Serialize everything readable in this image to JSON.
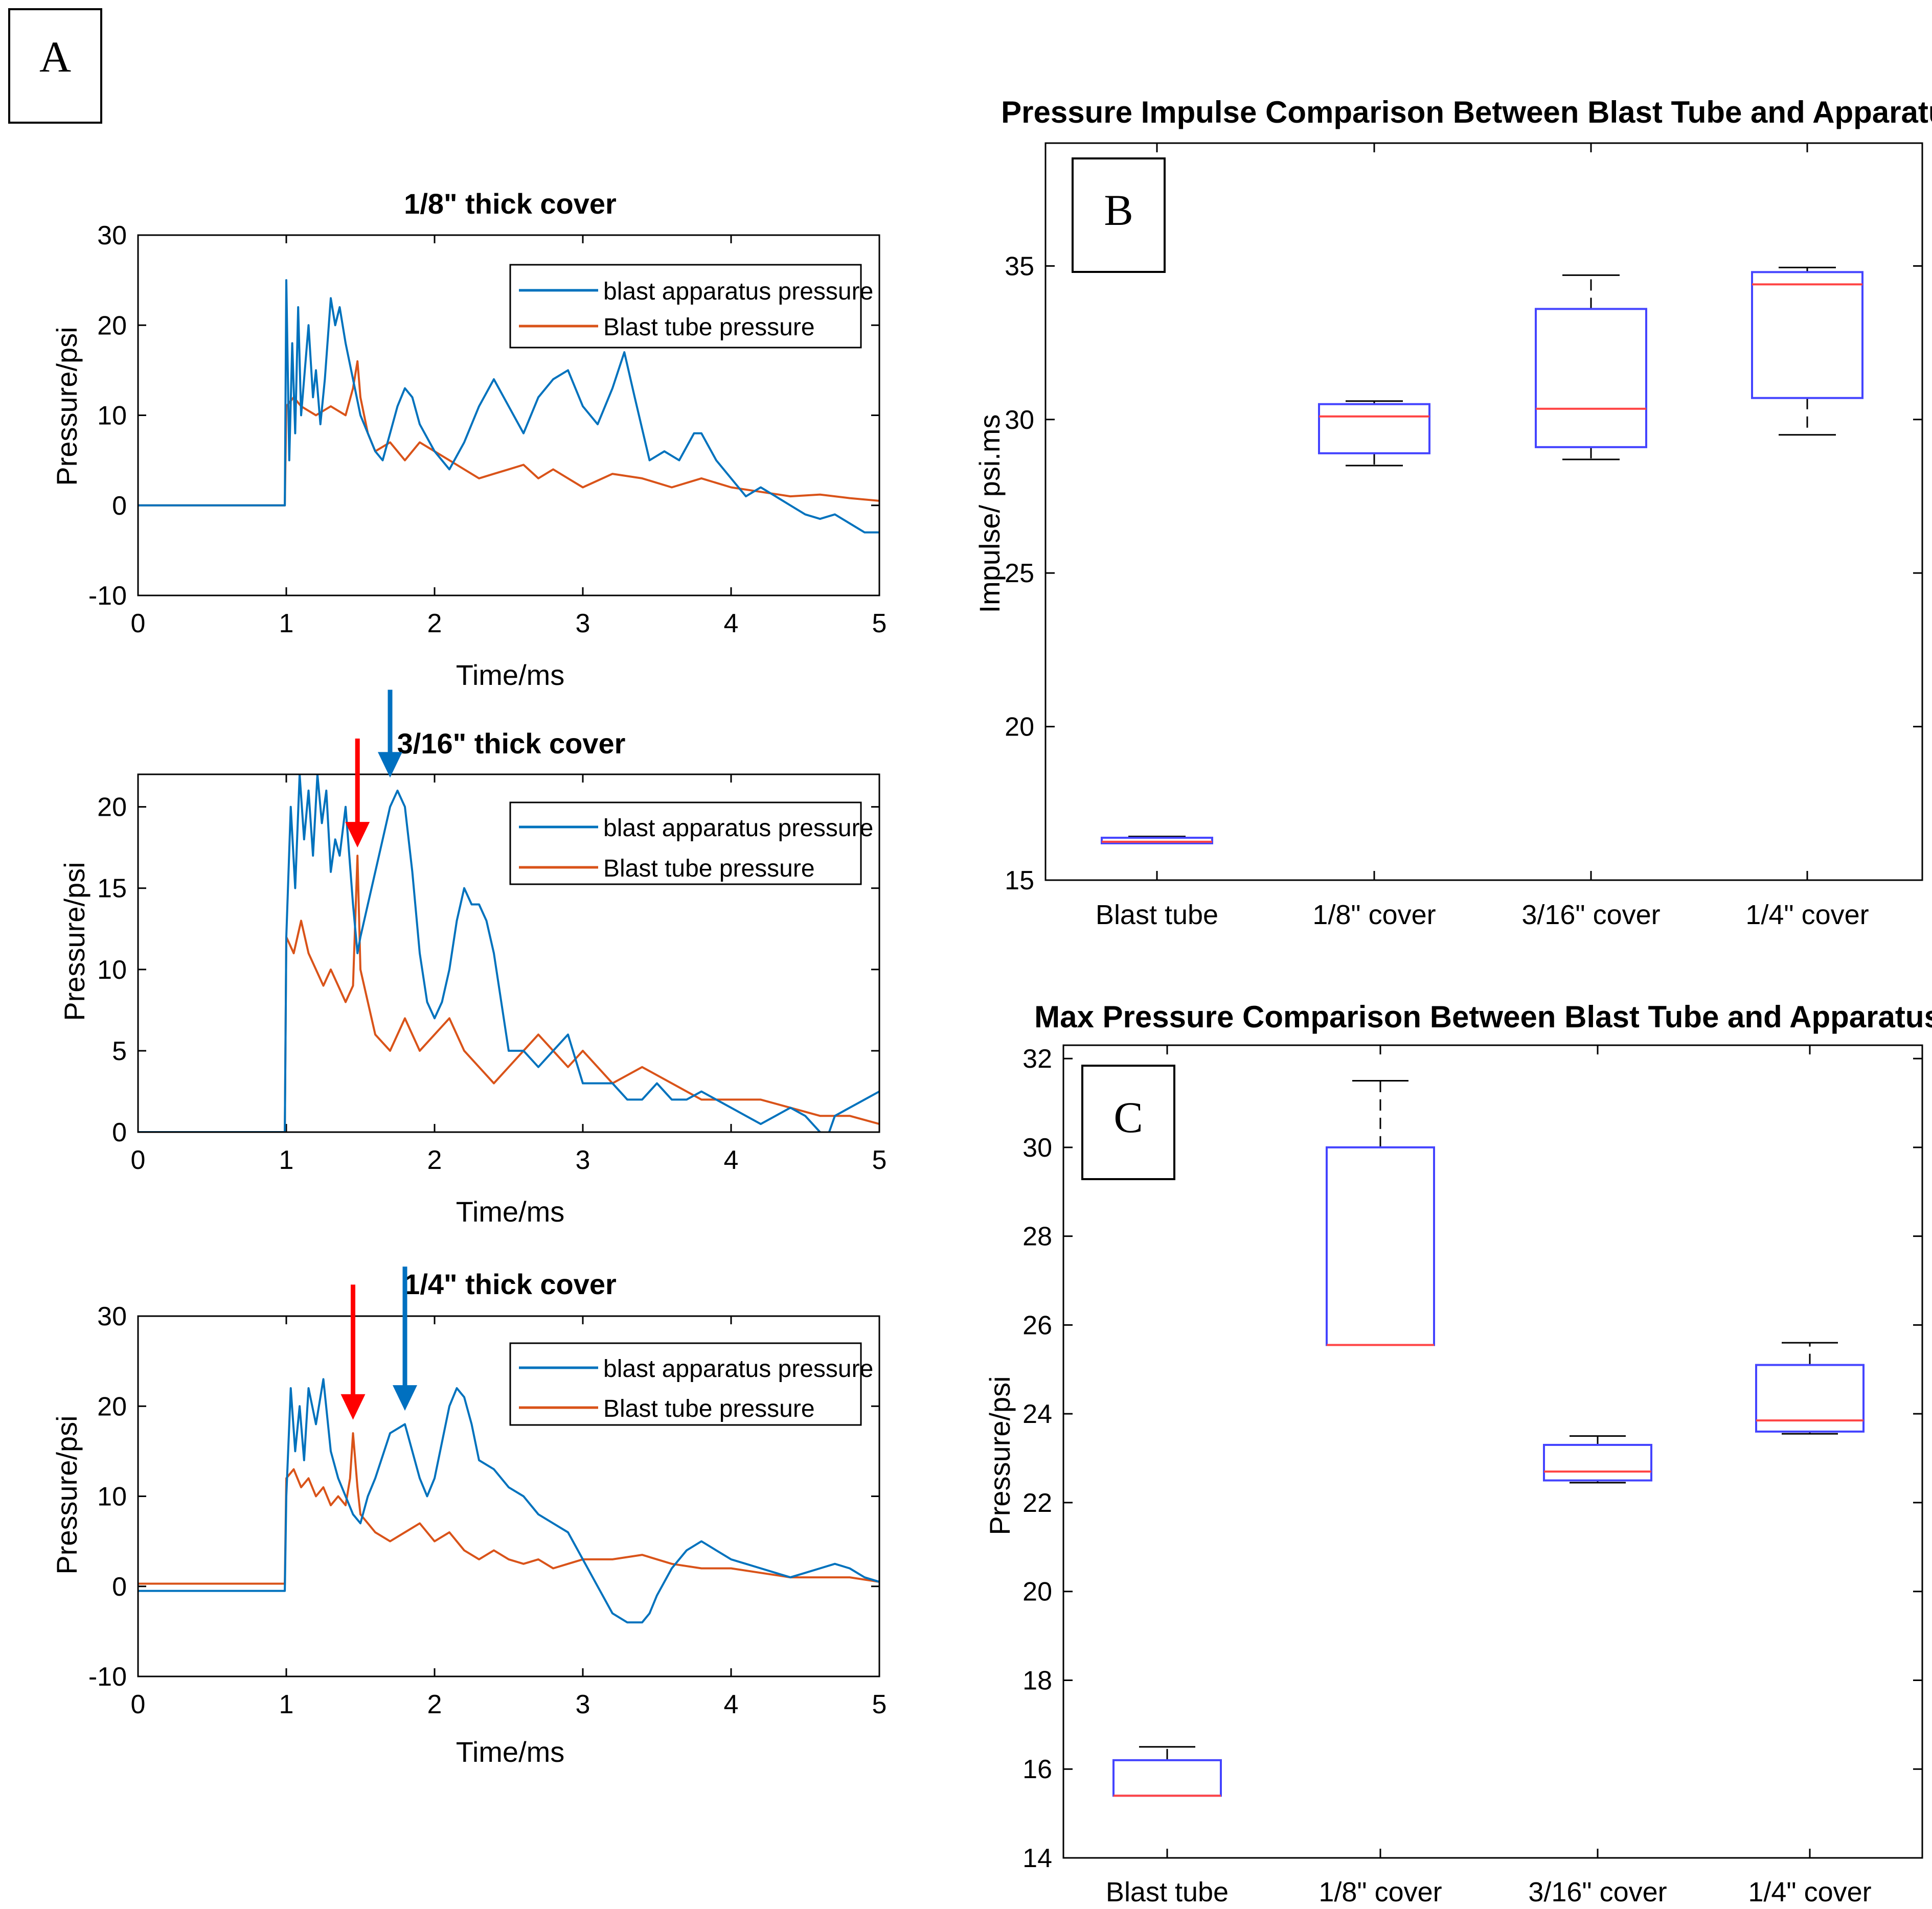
{
  "panels": {
    "a": "A",
    "b": "B",
    "c": "C"
  },
  "colors": {
    "apparatus": "#0072BD",
    "tube": "#D95319",
    "box": "#4444ff",
    "median": "#ff4444",
    "whisker": "#000000",
    "red_arrow": "#ff0000",
    "blue_arrow": "#0070C0"
  },
  "chart_data": [
    {
      "type": "line",
      "title": "1/8\" thick cover",
      "xlabel": "Time/ms",
      "ylabel": "Pressure/psi",
      "xlim": [
        0,
        5
      ],
      "ylim": [
        -10,
        30
      ],
      "xticks": [
        0,
        1,
        2,
        3,
        4,
        5
      ],
      "yticks": [
        -10,
        0,
        10,
        20,
        30
      ],
      "legend_position": "top-right",
      "arrows": [],
      "series": [
        {
          "name": "blast apparatus pressure",
          "x": [
            0,
            0.99,
            1.0,
            1.02,
            1.04,
            1.06,
            1.08,
            1.1,
            1.12,
            1.15,
            1.18,
            1.2,
            1.23,
            1.26,
            1.3,
            1.33,
            1.36,
            1.4,
            1.45,
            1.5,
            1.55,
            1.6,
            1.65,
            1.7,
            1.75,
            1.8,
            1.85,
            1.9,
            2.0,
            2.1,
            2.2,
            2.3,
            2.4,
            2.5,
            2.6,
            2.7,
            2.8,
            2.9,
            3.0,
            3.1,
            3.2,
            3.28,
            3.35,
            3.45,
            3.55,
            3.65,
            3.75,
            3.8,
            3.9,
            4.0,
            4.1,
            4.2,
            4.3,
            4.4,
            4.5,
            4.6,
            4.7,
            4.8,
            4.9,
            5.0
          ],
          "y": [
            0,
            0,
            25,
            5,
            18,
            8,
            22,
            10,
            14,
            20,
            12,
            15,
            9,
            14,
            23,
            20,
            22,
            18,
            14,
            10,
            8,
            6,
            5,
            8,
            11,
            13,
            12,
            9,
            6,
            4,
            7,
            11,
            14,
            11,
            8,
            12,
            14,
            15,
            11,
            9,
            13,
            17,
            12,
            5,
            6,
            5,
            8,
            8,
            5,
            3,
            1,
            2,
            1,
            0,
            -1,
            -1.5,
            -1,
            -2,
            -3,
            -3
          ]
        },
        {
          "name": "Blast tube pressure",
          "x": [
            0,
            0.99,
            1.0,
            1.05,
            1.1,
            1.2,
            1.3,
            1.4,
            1.45,
            1.48,
            1.5,
            1.55,
            1.6,
            1.7,
            1.8,
            1.9,
            2.0,
            2.1,
            2.2,
            2.3,
            2.4,
            2.5,
            2.6,
            2.7,
            2.8,
            2.9,
            3.0,
            3.2,
            3.4,
            3.6,
            3.8,
            4.0,
            4.2,
            4.4,
            4.6,
            4.8,
            5.0
          ],
          "y": [
            0,
            0,
            11,
            12,
            11,
            10,
            11,
            10,
            13,
            16,
            12,
            8,
            6,
            7,
            5,
            7,
            6,
            5,
            4,
            3,
            3.5,
            4,
            4.5,
            3,
            4,
            3,
            2,
            3.5,
            3,
            2,
            3,
            2,
            1.5,
            1,
            1.2,
            0.8,
            0.5
          ]
        }
      ]
    },
    {
      "type": "line",
      "title": "3/16\" thick cover",
      "xlabel": "Time/ms",
      "ylabel": "Pressure/psi",
      "xlim": [
        0,
        5
      ],
      "ylim": [
        0,
        22
      ],
      "xticks": [
        0,
        1,
        2,
        3,
        4,
        5
      ],
      "yticks": [
        0,
        5,
        10,
        15,
        20
      ],
      "legend_position": "top-right",
      "arrows": [
        {
          "color": "red_arrow",
          "x": 1.48,
          "y_from": 24.2,
          "y_to": 17.5
        },
        {
          "color": "blue_arrow",
          "x": 1.7,
          "y_from": 27.2,
          "y_to": 21.8
        }
      ],
      "series": [
        {
          "name": "blast apparatus pressure",
          "x": [
            0,
            0.99,
            1.0,
            1.03,
            1.06,
            1.09,
            1.12,
            1.15,
            1.18,
            1.21,
            1.24,
            1.27,
            1.3,
            1.33,
            1.36,
            1.4,
            1.45,
            1.48,
            1.5,
            1.55,
            1.6,
            1.65,
            1.7,
            1.75,
            1.8,
            1.85,
            1.9,
            1.95,
            2.0,
            2.05,
            2.1,
            2.15,
            2.2,
            2.25,
            2.3,
            2.35,
            2.4,
            2.45,
            2.5,
            2.6,
            2.7,
            2.8,
            2.9,
            3.0,
            3.1,
            3.2,
            3.3,
            3.4,
            3.5,
            3.6,
            3.7,
            3.8,
            3.9,
            4.0,
            4.1,
            4.2,
            4.3,
            4.4,
            4.5,
            4.6,
            4.65,
            4.7,
            4.8,
            4.9,
            5.0
          ],
          "y": [
            0,
            0,
            12,
            20,
            15,
            22,
            18,
            21,
            17,
            22,
            19,
            21,
            16,
            18,
            17,
            20,
            14,
            11,
            12,
            14,
            16,
            18,
            20,
            21,
            20,
            16,
            11,
            8,
            7,
            8,
            10,
            13,
            15,
            14,
            14,
            13,
            11,
            8,
            5,
            5,
            4,
            5,
            6,
            3,
            3,
            3,
            2,
            2,
            3,
            2,
            2,
            2.5,
            2,
            1.5,
            1,
            0.5,
            1,
            1.5,
            1,
            0,
            -0.3,
            1,
            1.5,
            2,
            2.5
          ]
        },
        {
          "name": "Blast tube pressure",
          "x": [
            0,
            0.99,
            1.0,
            1.05,
            1.1,
            1.15,
            1.2,
            1.25,
            1.3,
            1.35,
            1.4,
            1.45,
            1.48,
            1.5,
            1.55,
            1.6,
            1.7,
            1.8,
            1.9,
            2.0,
            2.1,
            2.2,
            2.3,
            2.4,
            2.5,
            2.6,
            2.7,
            2.8,
            2.9,
            3.0,
            3.2,
            3.4,
            3.6,
            3.8,
            4.0,
            4.2,
            4.4,
            4.6,
            4.8,
            5.0
          ],
          "y": [
            0,
            0,
            12,
            11,
            13,
            11,
            10,
            9,
            10,
            9,
            8,
            9,
            17,
            10,
            8,
            6,
            5,
            7,
            5,
            6,
            7,
            5,
            4,
            3,
            4,
            5,
            6,
            5,
            4,
            5,
            3,
            4,
            3,
            2,
            2,
            2,
            1.5,
            1,
            1,
            0.5
          ]
        }
      ]
    },
    {
      "type": "line",
      "title": "1/4\" thick cover",
      "xlabel": "Time/ms",
      "ylabel": "Pressure/psi",
      "xlim": [
        0,
        5
      ],
      "ylim": [
        -10,
        30
      ],
      "xticks": [
        0,
        1,
        2,
        3,
        4,
        5
      ],
      "yticks": [
        -10,
        0,
        10,
        20,
        30
      ],
      "legend_position": "top-right",
      "arrows": [
        {
          "color": "red_arrow",
          "x": 1.45,
          "y_from": 33.5,
          "y_to": 18.5
        },
        {
          "color": "blue_arrow",
          "x": 1.8,
          "y_from": 35.5,
          "y_to": 19.5
        }
      ],
      "series": [
        {
          "name": "blast apparatus pressure",
          "x": [
            0,
            0.99,
            1.0,
            1.03,
            1.06,
            1.09,
            1.12,
            1.15,
            1.2,
            1.25,
            1.3,
            1.35,
            1.4,
            1.45,
            1.5,
            1.55,
            1.6,
            1.7,
            1.8,
            1.85,
            1.9,
            1.95,
            2.0,
            2.05,
            2.1,
            2.15,
            2.2,
            2.25,
            2.3,
            2.4,
            2.5,
            2.6,
            2.7,
            2.8,
            2.9,
            3.0,
            3.1,
            3.2,
            3.3,
            3.4,
            3.45,
            3.5,
            3.6,
            3.7,
            3.8,
            3.9,
            4.0,
            4.1,
            4.2,
            4.3,
            4.4,
            4.5,
            4.6,
            4.7,
            4.8,
            4.9,
            5.0
          ],
          "y": [
            -0.5,
            -0.5,
            10,
            22,
            15,
            20,
            14,
            22,
            18,
            23,
            15,
            12,
            10,
            8,
            7,
            10,
            12,
            17,
            18,
            15,
            12,
            10,
            12,
            16,
            20,
            22,
            21,
            18,
            14,
            13,
            11,
            10,
            8,
            7,
            6,
            3,
            0,
            -3,
            -4,
            -4,
            -3,
            -1,
            2,
            4,
            5,
            4,
            3,
            2.5,
            2,
            1.5,
            1,
            1.5,
            2,
            2.5,
            2,
            1,
            0.5
          ]
        },
        {
          "name": "Blast tube pressure",
          "x": [
            0,
            0.99,
            1.0,
            1.05,
            1.1,
            1.15,
            1.2,
            1.25,
            1.3,
            1.35,
            1.4,
            1.43,
            1.45,
            1.48,
            1.5,
            1.55,
            1.6,
            1.7,
            1.8,
            1.9,
            2.0,
            2.1,
            2.2,
            2.3,
            2.4,
            2.5,
            2.6,
            2.7,
            2.8,
            2.9,
            3.0,
            3.2,
            3.4,
            3.6,
            3.8,
            4.0,
            4.2,
            4.4,
            4.6,
            4.8,
            5.0
          ],
          "y": [
            0.3,
            0.3,
            12,
            13,
            11,
            12,
            10,
            11,
            9,
            10,
            9,
            12,
            17,
            11,
            8,
            7,
            6,
            5,
            6,
            7,
            5,
            6,
            4,
            3,
            4,
            3,
            2.5,
            3,
            2,
            2.5,
            3,
            3,
            3.5,
            2.5,
            2,
            2,
            1.5,
            1,
            1,
            1,
            0.5
          ]
        }
      ]
    },
    {
      "type": "box",
      "title": "Pressure Impulse Comparison Between Blast Tube and Apparatus",
      "xlabel": "",
      "ylabel": "Impulse/ psi.ms",
      "ylim": [
        15,
        39
      ],
      "yticks": [
        15,
        20,
        25,
        30,
        35
      ],
      "categories": [
        "Blast tube",
        "1/8\" cover",
        "3/16\" cover",
        "1/4\" cover"
      ],
      "boxes": [
        {
          "min": 16.2,
          "q1": 16.2,
          "median": 16.25,
          "q3": 16.38,
          "max": 16.42
        },
        {
          "min": 28.5,
          "q1": 28.9,
          "median": 30.1,
          "q3": 30.5,
          "max": 30.6
        },
        {
          "min": 28.7,
          "q1": 29.1,
          "median": 30.35,
          "q3": 33.6,
          "max": 34.7
        },
        {
          "min": 29.5,
          "q1": 30.7,
          "median": 34.4,
          "q3": 34.8,
          "max": 34.95
        }
      ]
    },
    {
      "type": "box",
      "title": "Max Pressure Comparison Between Blast Tube and Apparatus",
      "xlabel": "",
      "ylabel": "Pressure/psi",
      "ylim": [
        14,
        32.3
      ],
      "yticks": [
        14,
        16,
        18,
        20,
        22,
        24,
        26,
        28,
        30,
        32
      ],
      "categories": [
        "Blast tube",
        "1/8\" cover",
        "3/16\" cover",
        "1/4\" cover"
      ],
      "boxes": [
        {
          "min": 15.4,
          "q1": 15.4,
          "median": 15.4,
          "q3": 16.2,
          "max": 16.5
        },
        {
          "min": 25.55,
          "q1": 25.55,
          "median": 25.55,
          "q3": 30.0,
          "max": 31.5
        },
        {
          "min": 22.45,
          "q1": 22.5,
          "median": 22.7,
          "q3": 23.3,
          "max": 23.5
        },
        {
          "min": 23.55,
          "q1": 23.6,
          "median": 23.85,
          "q3": 25.1,
          "max": 25.6
        }
      ]
    }
  ]
}
